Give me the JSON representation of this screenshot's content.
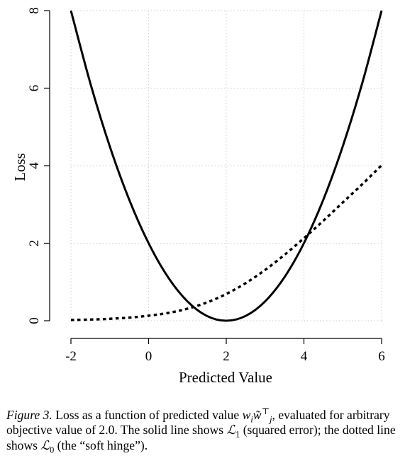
{
  "chart_data": {
    "type": "line",
    "title": "",
    "xlabel": "Predicted Value",
    "ylabel": "Loss",
    "xlim": [
      -2,
      6
    ],
    "ylim": [
      0,
      8
    ],
    "x_ticks": [
      -2,
      0,
      2,
      4,
      6
    ],
    "x_tick_labels": [
      "-2",
      "0",
      "2",
      "4",
      "6"
    ],
    "y_ticks": [
      0,
      2,
      4,
      6,
      8
    ],
    "y_tick_labels": [
      "0",
      "2",
      "4",
      "6",
      "8"
    ],
    "grid": true,
    "legend": "none",
    "series": [
      {
        "style": "solid",
        "color": "#000000",
        "x": [
          -2,
          -1.5,
          -1,
          -0.5,
          0,
          0.5,
          1,
          1.5,
          2,
          2.5,
          3,
          3.5,
          4,
          4.5,
          5,
          5.5,
          6
        ],
        "y": [
          8,
          6.125,
          4.5,
          3.125,
          2,
          1.125,
          0.5,
          0.125,
          0,
          0.125,
          0.5,
          1.125,
          2,
          3.125,
          4.5,
          6.125,
          8
        ]
      },
      {
        "style": "dotted",
        "color": "#000000",
        "x": [
          -2,
          -1.5,
          -1,
          -0.5,
          0,
          0.5,
          1,
          1.5,
          2,
          2.5,
          3,
          3.5,
          4,
          4.5,
          5,
          5.5,
          6
        ],
        "y": [
          0.02,
          0.03,
          0.05,
          0.08,
          0.13,
          0.2,
          0.31,
          0.47,
          0.69,
          0.97,
          1.31,
          1.7,
          2.13,
          2.58,
          3.05,
          3.52,
          4.01
        ]
      }
    ]
  },
  "caption": {
    "figure_label": "Figure 3.",
    "text_before_math": "Loss as a function of predicted value",
    "math_w": "w",
    "math_w_sub": "i",
    "math_wt": "w̃",
    "math_wt_sub": "j",
    "math_wt_sup": "⊤",
    "text_after_math": ", evaluated for arbitrary objective value of 2.0.  The solid line shows",
    "loss1_symbol": "ℒ",
    "loss1_sub": "1",
    "text_middle": "(squared error); the dotted line shows",
    "loss0_symbol": "ℒ",
    "loss0_sub": "0",
    "text_end": "(the “soft hinge”)."
  }
}
